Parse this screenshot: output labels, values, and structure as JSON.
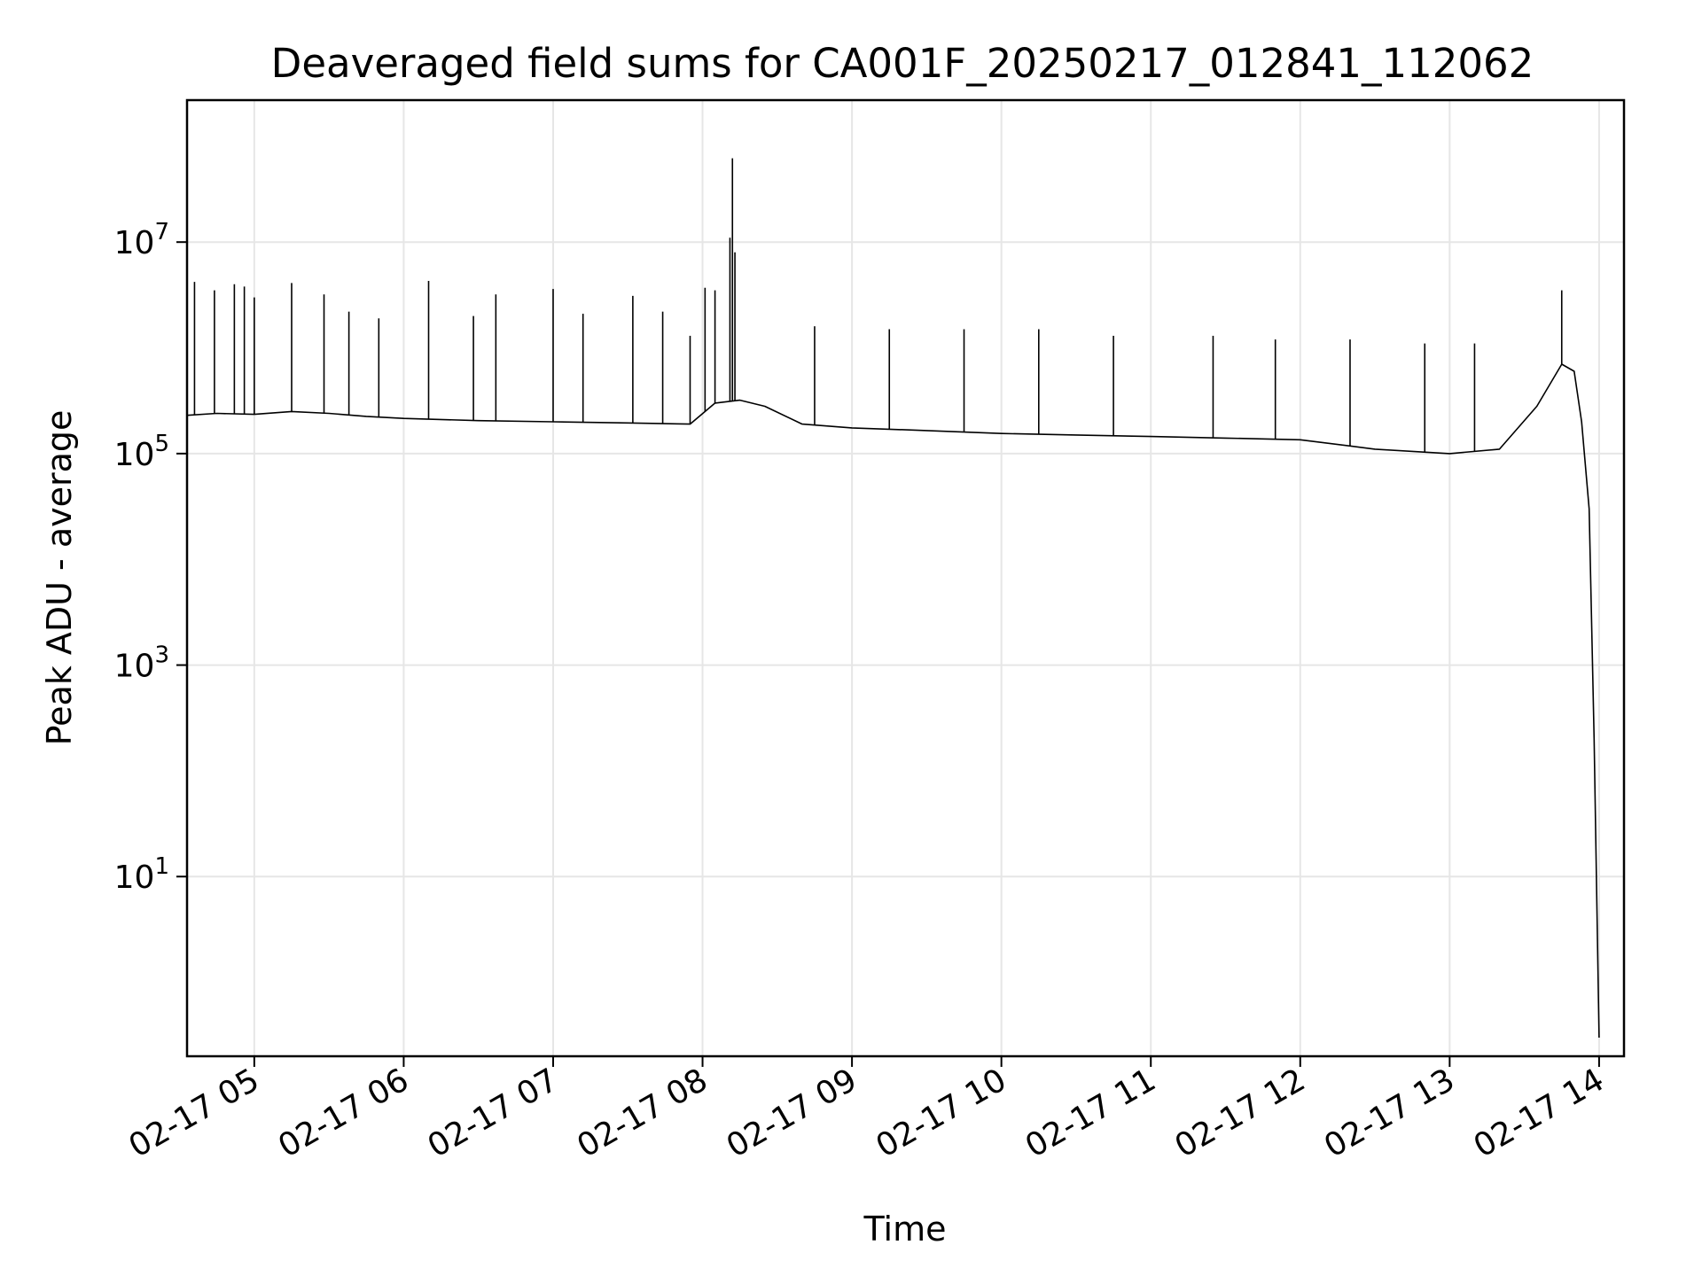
{
  "chart_data": {
    "type": "line",
    "title": "Deaveraged field sums for CA001F_20250217_012841_112062",
    "xlabel": "Time",
    "ylabel": "Peak ADU - average",
    "yscale": "log",
    "grid": true,
    "legend": "none",
    "x_ticks": [
      "02-17 05",
      "02-17 06",
      "02-17 07",
      "02-17 08",
      "02-17 09",
      "02-17 10",
      "02-17 11",
      "02-17 12",
      "02-17 13",
      "02-17 14"
    ],
    "y_ticks": [
      {
        "base": "10",
        "exp": "1",
        "value": 10
      },
      {
        "base": "10",
        "exp": "3",
        "value": 1000
      },
      {
        "base": "10",
        "exp": "5",
        "value": 100000
      },
      {
        "base": "10",
        "exp": "7",
        "value": 10000000
      }
    ],
    "xlim": [
      "2025-02-17 04:33",
      "2025-02-17 14:10"
    ],
    "ylim": [
      0.2,
      220000000
    ],
    "series": [
      {
        "color": "#000000",
        "points": [
          [
            "2025-02-17 04:33",
            230000
          ],
          [
            "2025-02-17 04:45",
            240000
          ],
          [
            "2025-02-17 05:00",
            235000
          ],
          [
            "2025-02-17 05:15",
            250000
          ],
          [
            "2025-02-17 05:30",
            240000
          ],
          [
            "2025-02-17 05:45",
            225000
          ],
          [
            "2025-02-17 06:00",
            215000
          ],
          [
            "2025-02-17 06:30",
            205000
          ],
          [
            "2025-02-17 07:00",
            200000
          ],
          [
            "2025-02-17 07:30",
            195000
          ],
          [
            "2025-02-17 07:55",
            190000
          ],
          [
            "2025-02-17 08:05",
            300000
          ],
          [
            "2025-02-17 08:15",
            320000
          ],
          [
            "2025-02-17 08:25",
            280000
          ],
          [
            "2025-02-17 08:40",
            190000
          ],
          [
            "2025-02-17 09:00",
            175000
          ],
          [
            "2025-02-17 09:30",
            165000
          ],
          [
            "2025-02-17 10:00",
            155000
          ],
          [
            "2025-02-17 10:30",
            150000
          ],
          [
            "2025-02-17 11:00",
            145000
          ],
          [
            "2025-02-17 11:30",
            140000
          ],
          [
            "2025-02-17 12:00",
            135000
          ],
          [
            "2025-02-17 12:30",
            110000
          ],
          [
            "2025-02-17 13:00",
            100000
          ],
          [
            "2025-02-17 13:20",
            110000
          ],
          [
            "2025-02-17 13:35",
            280000
          ],
          [
            "2025-02-17 13:45",
            700000
          ],
          [
            "2025-02-17 13:50",
            600000
          ],
          [
            "2025-02-17 13:53",
            200000
          ],
          [
            "2025-02-17 13:56",
            30000
          ],
          [
            "2025-02-17 13:58",
            200
          ],
          [
            "2025-02-17 14:00",
            0.3
          ]
        ],
        "spikes": [
          [
            "2025-02-17 04:36",
            4200000
          ],
          [
            "2025-02-17 04:44",
            3500000
          ],
          [
            "2025-02-17 04:52",
            4000000
          ],
          [
            "2025-02-17 04:56",
            3800000
          ],
          [
            "2025-02-17 05:00",
            3000000
          ],
          [
            "2025-02-17 05:15",
            4100000
          ],
          [
            "2025-02-17 05:28",
            3200000
          ],
          [
            "2025-02-17 05:38",
            2200000
          ],
          [
            "2025-02-17 05:50",
            1900000
          ],
          [
            "2025-02-17 06:10",
            4300000
          ],
          [
            "2025-02-17 06:28",
            2000000
          ],
          [
            "2025-02-17 06:37",
            3200000
          ],
          [
            "2025-02-17 07:00",
            3600000
          ],
          [
            "2025-02-17 07:12",
            2100000
          ],
          [
            "2025-02-17 07:32",
            3100000
          ],
          [
            "2025-02-17 07:44",
            2200000
          ],
          [
            "2025-02-17 07:55",
            1300000
          ],
          [
            "2025-02-17 08:01",
            3700000
          ],
          [
            "2025-02-17 08:05",
            3500000
          ],
          [
            "2025-02-17 08:11",
            11000000
          ],
          [
            "2025-02-17 08:12",
            62000000
          ],
          [
            "2025-02-17 08:13",
            8000000
          ],
          [
            "2025-02-17 08:45",
            1600000
          ],
          [
            "2025-02-17 09:15",
            1500000
          ],
          [
            "2025-02-17 09:45",
            1500000
          ],
          [
            "2025-02-17 10:15",
            1500000
          ],
          [
            "2025-02-17 10:45",
            1300000
          ],
          [
            "2025-02-17 11:25",
            1300000
          ],
          [
            "2025-02-17 11:50",
            1200000
          ],
          [
            "2025-02-17 12:20",
            1200000
          ],
          [
            "2025-02-17 12:50",
            1100000
          ],
          [
            "2025-02-17 13:10",
            1100000
          ],
          [
            "2025-02-17 13:45",
            3500000
          ]
        ]
      }
    ]
  }
}
